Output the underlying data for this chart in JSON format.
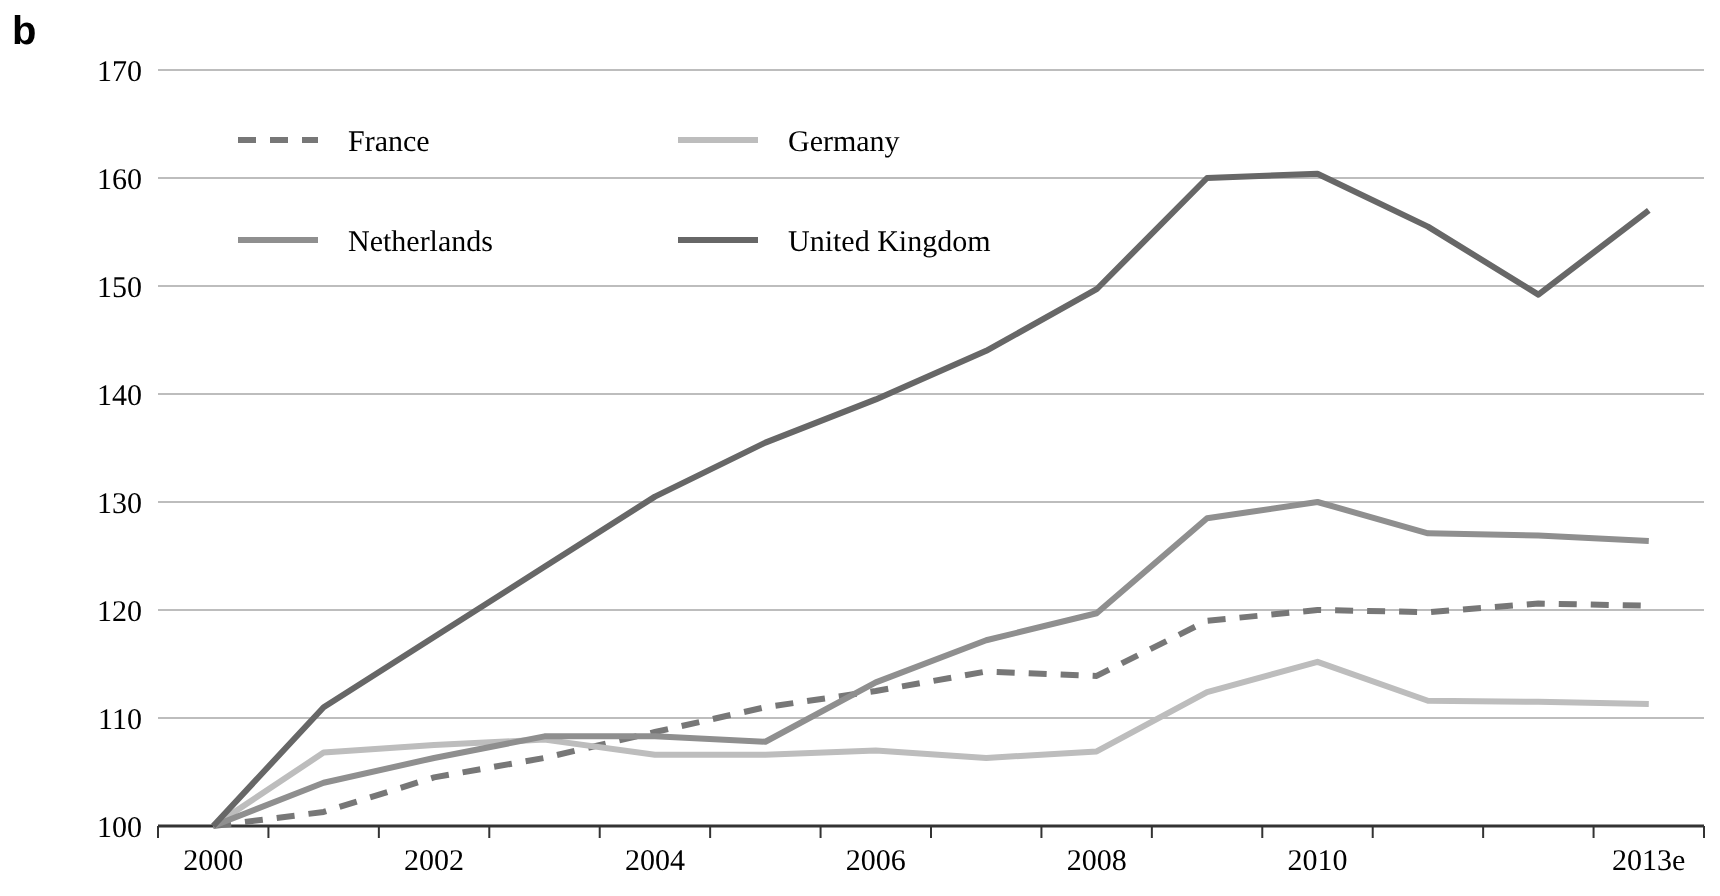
{
  "chart_data": {
    "type": "line",
    "title": "b",
    "categories": [
      "2000",
      null,
      "2002",
      null,
      "2004",
      null,
      "2006",
      null,
      "2008",
      null,
      "2010",
      null,
      null,
      "2013e"
    ],
    "series": [
      {
        "name": "France",
        "color": "#777777",
        "line_style": "dashed",
        "values": [
          100,
          101.3,
          104.5,
          106.3,
          108.7,
          111,
          112.5,
          114.3,
          113.9,
          119,
          120,
          119.8,
          120.6,
          120.4
        ]
      },
      {
        "name": "Germany",
        "color": "#bdbdbd",
        "line_style": "solid",
        "values": [
          100,
          106.8,
          107.5,
          108,
          106.6,
          106.6,
          107,
          106.3,
          106.9,
          112.4,
          115.2,
          111.6,
          111.5,
          111.3
        ]
      },
      {
        "name": "Netherlands",
        "color": "#8f8f8f",
        "line_style": "solid",
        "values": [
          100,
          104,
          106.3,
          108.3,
          108.3,
          107.8,
          113.3,
          117.2,
          119.7,
          128.5,
          130,
          127.1,
          126.9,
          126.4
        ]
      },
      {
        "name": "United Kingdom",
        "color": "#676767",
        "line_style": "solid",
        "values": [
          100,
          111,
          117.5,
          124,
          130.5,
          135.5,
          139.5,
          144,
          149.7,
          160,
          160.4,
          155.5,
          149.2,
          157
        ]
      }
    ],
    "ylim": [
      100,
      170
    ],
    "yticks": [
      100,
      110,
      120,
      130,
      140,
      150,
      160,
      170
    ],
    "grid": "y",
    "legend": "top left",
    "marker": "none"
  }
}
